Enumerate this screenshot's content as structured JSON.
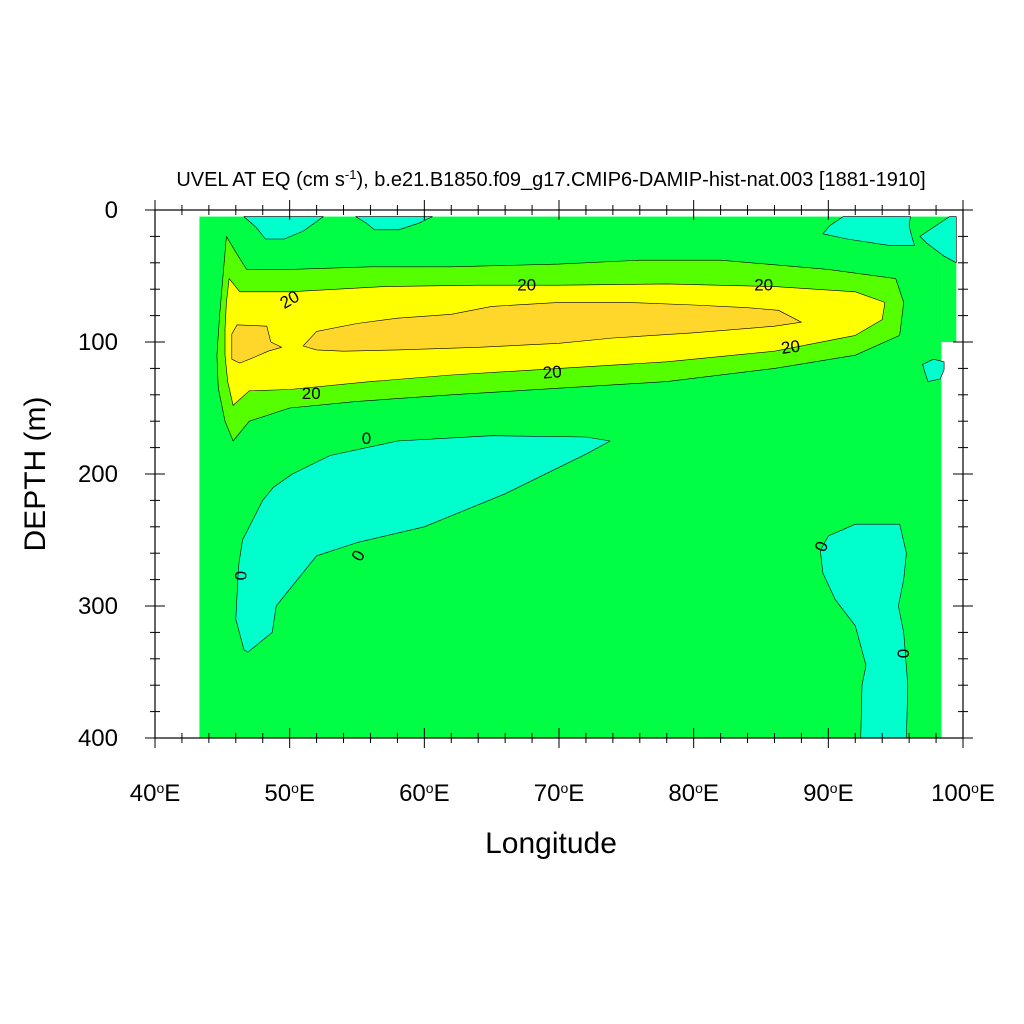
{
  "chart_data": {
    "type": "contour",
    "title_main": "UVEL AT EQ (cm s",
    "title_sup": "-1",
    "title_rest": "), b.e21.B1850.f09_g17.CMIP6-DAMIP-hist-nat.003 [1881-1910]",
    "xlabel": "Longitude",
    "ylabel": "DEPTH (m)",
    "xlim": [
      40,
      100
    ],
    "ylim": [
      400,
      0
    ],
    "x_ticks": [
      {
        "value": 40,
        "num": "40",
        "deg": "o",
        "dir": "E"
      },
      {
        "value": 50,
        "num": "50",
        "deg": "o",
        "dir": "E"
      },
      {
        "value": 60,
        "num": "60",
        "deg": "o",
        "dir": "E"
      },
      {
        "value": 70,
        "num": "70",
        "deg": "o",
        "dir": "E"
      },
      {
        "value": 80,
        "num": "80",
        "deg": "o",
        "dir": "E"
      },
      {
        "value": 90,
        "num": "90",
        "deg": "o",
        "dir": "E"
      },
      {
        "value": 100,
        "num": "100",
        "deg": "o",
        "dir": "E"
      }
    ],
    "y_ticks": [
      {
        "value": 0,
        "label": "0"
      },
      {
        "value": 100,
        "label": "100"
      },
      {
        "value": 200,
        "label": "200"
      },
      {
        "value": 300,
        "label": "300"
      },
      {
        "value": 400,
        "label": "400"
      }
    ],
    "x_minor_step": 2,
    "y_minor_step": 20,
    "data_extent": {
      "lon": [
        43.3,
        98.4
      ],
      "depth": [
        5,
        400
      ]
    },
    "levels": [
      {
        "range": "< 0",
        "color": "#00ffcc"
      },
      {
        "range": "0 to 10",
        "color": "#00ff44"
      },
      {
        "range": "10 to 20",
        "color": "#55ff00"
      },
      {
        "range": "20 to 30",
        "color": "#ffff00"
      },
      {
        "range": "> 30",
        "color": "#ffd62a"
      }
    ],
    "regions": [
      {
        "name": "eastern-shelf",
        "level": "0 to 10",
        "points": [
          [
            98.4,
            100
          ],
          [
            99.5,
            100
          ],
          [
            99.5,
            5
          ],
          [
            98.4,
            5
          ]
        ]
      },
      {
        "name": "band-10",
        "level": "10 to 20",
        "points": [
          [
            45.3,
            20
          ],
          [
            46,
            32
          ],
          [
            46.8,
            45
          ],
          [
            50,
            45
          ],
          [
            56,
            43
          ],
          [
            62,
            43
          ],
          [
            70,
            41
          ],
          [
            76,
            38
          ],
          [
            82,
            38
          ],
          [
            90,
            45
          ],
          [
            95,
            52
          ],
          [
            95.6,
            70
          ],
          [
            95.3,
            95
          ],
          [
            92,
            110
          ],
          [
            86,
            120
          ],
          [
            78,
            130
          ],
          [
            70,
            135
          ],
          [
            62,
            140
          ],
          [
            55,
            145
          ],
          [
            50,
            150
          ],
          [
            47,
            160
          ],
          [
            45.8,
            175
          ],
          [
            45.2,
            160
          ],
          [
            44.7,
            135
          ],
          [
            44.6,
            110
          ],
          [
            44.8,
            80
          ]
        ]
      },
      {
        "name": "band-20",
        "level": "20 to 30",
        "points": [
          [
            45.5,
            52
          ],
          [
            46.3,
            62
          ],
          [
            50,
            62
          ],
          [
            57,
            58
          ],
          [
            64,
            57
          ],
          [
            70,
            57
          ],
          [
            78,
            56
          ],
          [
            86,
            58
          ],
          [
            92,
            62
          ],
          [
            94.2,
            70
          ],
          [
            94,
            83
          ],
          [
            92,
            95
          ],
          [
            86,
            107
          ],
          [
            78,
            115
          ],
          [
            70,
            120
          ],
          [
            62,
            125
          ],
          [
            56,
            130
          ],
          [
            50,
            136
          ],
          [
            47,
            137
          ],
          [
            45.8,
            148
          ],
          [
            45.4,
            130
          ],
          [
            45.2,
            110
          ],
          [
            45.2,
            90
          ],
          [
            45.3,
            70
          ]
        ]
      },
      {
        "name": "core-30-east",
        "level": "> 30",
        "points": [
          [
            51,
            103
          ],
          [
            52,
            92
          ],
          [
            55,
            86
          ],
          [
            58,
            82
          ],
          [
            62,
            79
          ],
          [
            65,
            73
          ],
          [
            70,
            70
          ],
          [
            75,
            70
          ],
          [
            80,
            72
          ],
          [
            84,
            74
          ],
          [
            86.3,
            76
          ],
          [
            88,
            85
          ],
          [
            86,
            88
          ],
          [
            80,
            93
          ],
          [
            74,
            97
          ],
          [
            70,
            101
          ],
          [
            64,
            104
          ],
          [
            58,
            106
          ],
          [
            54,
            107
          ],
          [
            52,
            106
          ]
        ]
      },
      {
        "name": "core-30-west",
        "level": "> 30",
        "points": [
          [
            45.7,
            94
          ],
          [
            46.1,
            87
          ],
          [
            48.3,
            88
          ],
          [
            48.6,
            100
          ],
          [
            49.4,
            104
          ],
          [
            48.4,
            107
          ],
          [
            47.5,
            111
          ],
          [
            46.3,
            116
          ],
          [
            45.7,
            113
          ]
        ]
      },
      {
        "name": "neg-1",
        "level": "< 0",
        "points": [
          [
            50.2,
            200
          ],
          [
            53,
            186
          ],
          [
            58,
            175
          ],
          [
            65,
            171
          ],
          [
            72,
            172
          ],
          [
            73.8,
            175
          ],
          [
            72,
            185
          ],
          [
            66,
            215
          ],
          [
            60,
            240
          ],
          [
            55,
            252
          ],
          [
            52,
            262
          ],
          [
            49,
            300
          ],
          [
            48.7,
            320
          ],
          [
            46.9,
            335
          ],
          [
            46.6,
            333
          ],
          [
            46,
            310
          ],
          [
            46.2,
            270
          ],
          [
            46.5,
            250
          ],
          [
            48,
            220
          ],
          [
            48.8,
            210
          ]
        ]
      },
      {
        "name": "neg-2",
        "level": "< 0",
        "points": [
          [
            90,
            247
          ],
          [
            92,
            238
          ],
          [
            95.3,
            238
          ],
          [
            95.8,
            260
          ],
          [
            95.6,
            280
          ],
          [
            95.2,
            300
          ],
          [
            95.6,
            320
          ],
          [
            95.9,
            360
          ],
          [
            95.8,
            400
          ],
          [
            92.4,
            400
          ],
          [
            92.5,
            360
          ],
          [
            92.8,
            345
          ],
          [
            92,
            315
          ],
          [
            90.5,
            295
          ],
          [
            89.6,
            275
          ],
          [
            89.4,
            258
          ]
        ]
      },
      {
        "name": "neg-3",
        "level": "< 0",
        "points": [
          [
            46.6,
            5
          ],
          [
            47.5,
            13
          ],
          [
            48.2,
            22
          ],
          [
            49.6,
            22
          ],
          [
            51,
            16
          ],
          [
            52.1,
            8
          ],
          [
            52.5,
            5
          ]
        ]
      },
      {
        "name": "neg-4",
        "level": "< 0",
        "points": [
          [
            54.9,
            5
          ],
          [
            55.7,
            10
          ],
          [
            56.3,
            15
          ],
          [
            58.1,
            15
          ],
          [
            59.6,
            10
          ],
          [
            60.6,
            5
          ]
        ]
      },
      {
        "name": "neg-5",
        "level": "< 0",
        "points": [
          [
            91.1,
            5
          ],
          [
            90.1,
            12
          ],
          [
            89.6,
            18
          ],
          [
            91.4,
            22
          ],
          [
            94.6,
            27
          ],
          [
            96.4,
            27
          ],
          [
            96.2,
            20
          ],
          [
            96,
            12
          ],
          [
            96.1,
            5
          ]
        ]
      },
      {
        "name": "neg-6",
        "level": "< 0",
        "points": [
          [
            96.8,
            20
          ],
          [
            97.3,
            25
          ],
          [
            98.6,
            35
          ],
          [
            99.5,
            40
          ],
          [
            99.5,
            5
          ],
          [
            99,
            5
          ]
        ]
      },
      {
        "name": "neg-7",
        "level": "< 0",
        "points": [
          [
            97,
            117
          ],
          [
            97.2,
            124
          ],
          [
            97.4,
            130
          ],
          [
            98.3,
            128
          ],
          [
            98.6,
            121
          ],
          [
            98.6,
            115
          ],
          [
            97.8,
            113
          ]
        ]
      }
    ],
    "contour_labels": [
      {
        "text": "20",
        "lon": 50,
        "depth": 68,
        "angle": -30
      },
      {
        "text": "20",
        "lon": 67.6,
        "depth": 57,
        "angle": 0
      },
      {
        "text": "20",
        "lon": 85.2,
        "depth": 57,
        "angle": 0
      },
      {
        "text": "20",
        "lon": 87.2,
        "depth": 104,
        "angle": -8
      },
      {
        "text": "20",
        "lon": 69.5,
        "depth": 123,
        "angle": -5
      },
      {
        "text": "20",
        "lon": 51.6,
        "depth": 139,
        "angle": 0
      },
      {
        "text": "0",
        "lon": 55.7,
        "depth": 173,
        "angle": 0
      },
      {
        "text": "0",
        "lon": 55.1,
        "depth": 262,
        "angle": -62
      },
      {
        "text": "0",
        "lon": 46.4,
        "depth": 277,
        "angle": -90
      },
      {
        "text": "0",
        "lon": 89.5,
        "depth": 255,
        "angle": -70
      },
      {
        "text": "0",
        "lon": 95.6,
        "depth": 336,
        "angle": -90
      }
    ]
  }
}
